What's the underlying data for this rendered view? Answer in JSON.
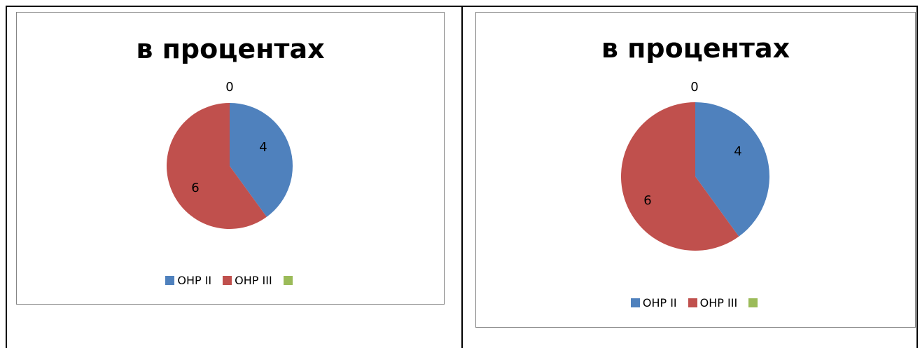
{
  "chart_data": [
    {
      "type": "pie",
      "title": "в процентах",
      "categories": [
        "ОНР II",
        "ОНР III",
        ""
      ],
      "values": [
        4,
        6,
        0
      ],
      "colors": [
        "#4f81bd",
        "#c0504d",
        "#9bbb59"
      ],
      "legend_position": "bottom",
      "data_labels": [
        "4",
        "6",
        "0"
      ]
    },
    {
      "type": "pie",
      "title": "в процентах",
      "categories": [
        "ОНР II",
        "ОНР III",
        ""
      ],
      "values": [
        4,
        6,
        0
      ],
      "colors": [
        "#4f81bd",
        "#c0504d",
        "#9bbb59"
      ],
      "legend_position": "bottom",
      "data_labels": [
        "4",
        "6",
        "0"
      ]
    }
  ]
}
